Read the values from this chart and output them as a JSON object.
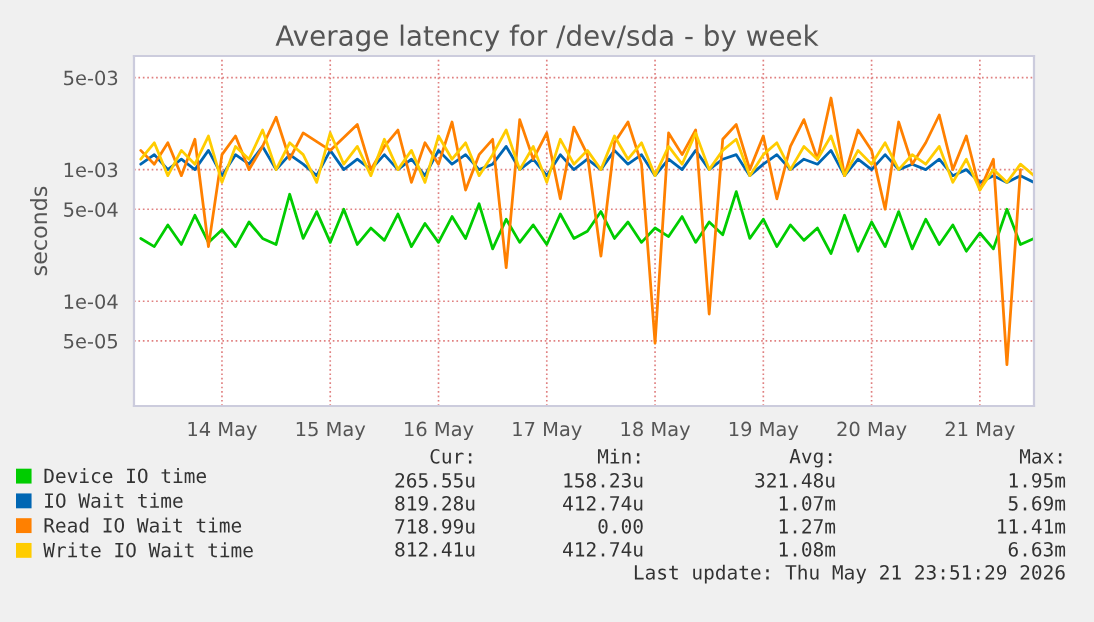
{
  "chart_data": {
    "type": "line",
    "title": "Average latency for /dev/sda - by week",
    "ylabel": "seconds",
    "log": "y",
    "grid": true,
    "legend": "bottom left",
    "line_style": "solid",
    "xlim": [
      "2026-05-13T16:30",
      "2026-05-22T00:00"
    ],
    "xticks": [
      {
        "value": "2026-05-14T12:00",
        "label": "14 May"
      },
      {
        "value": "2026-05-15T12:00",
        "label": "15 May"
      },
      {
        "value": "2026-05-16T12:00",
        "label": "16 May"
      },
      {
        "value": "2026-05-17T12:00",
        "label": "17 May"
      },
      {
        "value": "2026-05-18T12:00",
        "label": "18 May"
      },
      {
        "value": "2026-05-19T12:00",
        "label": "19 May"
      },
      {
        "value": "2026-05-20T12:00",
        "label": "20 May"
      },
      {
        "value": "2026-05-21T12:00",
        "label": "21 May"
      }
    ],
    "ylim": [
      1.6e-05,
      0.0073
    ],
    "yticks": [
      {
        "value": 0.005,
        "label": "5e-03"
      },
      {
        "value": 0.001,
        "label": "1e-03"
      },
      {
        "value": 0.0005,
        "label": "5e-04"
      },
      {
        "value": 0.0001,
        "label": "1e-04"
      },
      {
        "value": 5e-05,
        "label": "5e-05"
      }
    ],
    "x": [
      "2026-05-13T18:00",
      "2026-05-13T21:00",
      "2026-05-14T00:00",
      "2026-05-14T03:00",
      "2026-05-14T06:00",
      "2026-05-14T09:00",
      "2026-05-14T12:00",
      "2026-05-14T15:00",
      "2026-05-14T18:00",
      "2026-05-14T21:00",
      "2026-05-15T00:00",
      "2026-05-15T03:00",
      "2026-05-15T06:00",
      "2026-05-15T09:00",
      "2026-05-15T12:00",
      "2026-05-15T15:00",
      "2026-05-15T18:00",
      "2026-05-15T21:00",
      "2026-05-16T00:00",
      "2026-05-16T03:00",
      "2026-05-16T06:00",
      "2026-05-16T09:00",
      "2026-05-16T12:00",
      "2026-05-16T15:00",
      "2026-05-16T18:00",
      "2026-05-16T21:00",
      "2026-05-17T00:00",
      "2026-05-17T03:00",
      "2026-05-17T06:00",
      "2026-05-17T09:00",
      "2026-05-17T12:00",
      "2026-05-17T15:00",
      "2026-05-17T18:00",
      "2026-05-17T21:00",
      "2026-05-18T00:00",
      "2026-05-18T03:00",
      "2026-05-18T06:00",
      "2026-05-18T09:00",
      "2026-05-18T12:00",
      "2026-05-18T15:00",
      "2026-05-18T18:00",
      "2026-05-18T21:00",
      "2026-05-19T00:00",
      "2026-05-19T03:00",
      "2026-05-19T06:00",
      "2026-05-19T09:00",
      "2026-05-19T12:00",
      "2026-05-19T15:00",
      "2026-05-19T18:00",
      "2026-05-19T21:00",
      "2026-05-20T00:00",
      "2026-05-20T03:00",
      "2026-05-20T06:00",
      "2026-05-20T09:00",
      "2026-05-20T12:00",
      "2026-05-20T15:00",
      "2026-05-20T18:00",
      "2026-05-20T21:00",
      "2026-05-21T00:00",
      "2026-05-21T03:00",
      "2026-05-21T06:00",
      "2026-05-21T09:00",
      "2026-05-21T12:00",
      "2026-05-21T15:00",
      "2026-05-21T18:00",
      "2026-05-21T21:00",
      "2026-05-22T00:00"
    ],
    "series": [
      {
        "name": "Device IO time",
        "color": "#00cc00",
        "values": [
          0.0003,
          0.00026,
          0.00038,
          0.00027,
          0.00045,
          0.00028,
          0.00035,
          0.00026,
          0.0004,
          0.0003,
          0.00027,
          0.00065,
          0.0003,
          0.00048,
          0.00028,
          0.0005,
          0.00027,
          0.00036,
          0.00029,
          0.00046,
          0.00026,
          0.00039,
          0.00028,
          0.00044,
          0.0003,
          0.00055,
          0.00025,
          0.00042,
          0.00028,
          0.00038,
          0.00027,
          0.00046,
          0.0003,
          0.00034,
          0.00048,
          0.0003,
          0.0004,
          0.00028,
          0.00036,
          0.00031,
          0.00044,
          0.00028,
          0.0004,
          0.00032,
          0.00068,
          0.0003,
          0.00042,
          0.00026,
          0.00038,
          0.00029,
          0.00036,
          0.00023,
          0.00045,
          0.00024,
          0.0004,
          0.00026,
          0.00048,
          0.00025,
          0.00042,
          0.00027,
          0.00038,
          0.00024,
          0.00033,
          0.00025,
          0.0005,
          0.00027,
          0.0003
        ]
      },
      {
        "name": "IO Wait time",
        "color": "#0066b3",
        "values": [
          0.0011,
          0.0013,
          0.001,
          0.0012,
          0.001,
          0.0014,
          0.0009,
          0.0013,
          0.0011,
          0.0015,
          0.001,
          0.0013,
          0.0011,
          0.0009,
          0.0014,
          0.001,
          0.0012,
          0.001,
          0.0013,
          0.001,
          0.0012,
          0.0009,
          0.0014,
          0.0011,
          0.0013,
          0.001,
          0.0011,
          0.0015,
          0.001,
          0.0012,
          0.0009,
          0.0013,
          0.001,
          0.0012,
          0.001,
          0.0014,
          0.0011,
          0.0013,
          0.0009,
          0.0012,
          0.001,
          0.0014,
          0.001,
          0.0012,
          0.0013,
          0.0009,
          0.0011,
          0.0013,
          0.001,
          0.0012,
          0.0011,
          0.0014,
          0.0009,
          0.0012,
          0.001,
          0.0013,
          0.001,
          0.0011,
          0.001,
          0.0012,
          0.0009,
          0.001,
          0.0008,
          0.0009,
          0.0008,
          0.0009,
          0.0008
        ]
      },
      {
        "name": "Read IO Wait time",
        "color": "#ff8000",
        "values": [
          0.0014,
          0.0011,
          0.0016,
          0.0009,
          0.0017,
          0.00026,
          0.0013,
          0.0018,
          0.001,
          0.0015,
          0.0025,
          0.0012,
          0.0019,
          null,
          0.0014,
          null,
          0.0022,
          0.001,
          0.0015,
          0.002,
          0.0008,
          0.0016,
          0.0011,
          0.0023,
          0.0007,
          0.0013,
          0.0017,
          0.00018,
          0.0024,
          0.0012,
          0.0019,
          0.0006,
          0.0021,
          0.0013,
          0.00022,
          0.0016,
          0.0023,
          0.0011,
          4.8e-05,
          0.0019,
          0.0013,
          0.002,
          8e-05,
          0.0017,
          0.0022,
          0.001,
          0.0018,
          0.0006,
          0.0015,
          0.0024,
          0.0012,
          0.0035,
          0.0009,
          0.002,
          0.0014,
          0.0005,
          0.0023,
          0.0011,
          0.0016,
          0.0026,
          0.001,
          0.0018,
          0.0007,
          0.0012,
          3.3e-05,
          0.001,
          null
        ]
      },
      {
        "name": "Write IO Wait time",
        "color": "#ffcc00",
        "values": [
          0.0012,
          0.0016,
          0.0009,
          0.0014,
          0.0011,
          0.0018,
          0.0008,
          0.0015,
          0.0012,
          0.002,
          0.001,
          0.0016,
          0.0013,
          0.0008,
          0.0019,
          0.0011,
          0.0015,
          0.0009,
          0.0017,
          0.001,
          0.0014,
          0.0008,
          0.0018,
          0.0012,
          0.0016,
          0.0009,
          0.0013,
          0.002,
          0.001,
          0.0015,
          0.0008,
          0.0017,
          0.0011,
          0.0014,
          0.001,
          0.0018,
          0.0012,
          0.0016,
          0.0009,
          0.0015,
          0.0011,
          0.0019,
          0.001,
          0.0014,
          0.0017,
          0.0009,
          0.0013,
          0.0016,
          0.001,
          0.0015,
          0.0012,
          0.0018,
          0.0009,
          0.0014,
          0.0011,
          0.0016,
          0.001,
          0.0013,
          0.0011,
          0.0015,
          0.0008,
          0.0012,
          0.0007,
          0.001,
          0.0008,
          0.0011,
          0.0009
        ]
      }
    ],
    "annotations": [
      "Cur:",
      "Min:",
      "Avg:",
      "Max:",
      "265.55u",
      "158.23u",
      "321.48u",
      "1.95m",
      "819.28u",
      "412.74u",
      "1.07m",
      "5.69m",
      "718.99u",
      "0.00",
      "1.27m",
      "11.41m",
      "812.41u",
      "412.74u",
      "1.08m",
      "6.63m",
      "Last update: Thu May 21 23:51:29 2026"
    ]
  }
}
